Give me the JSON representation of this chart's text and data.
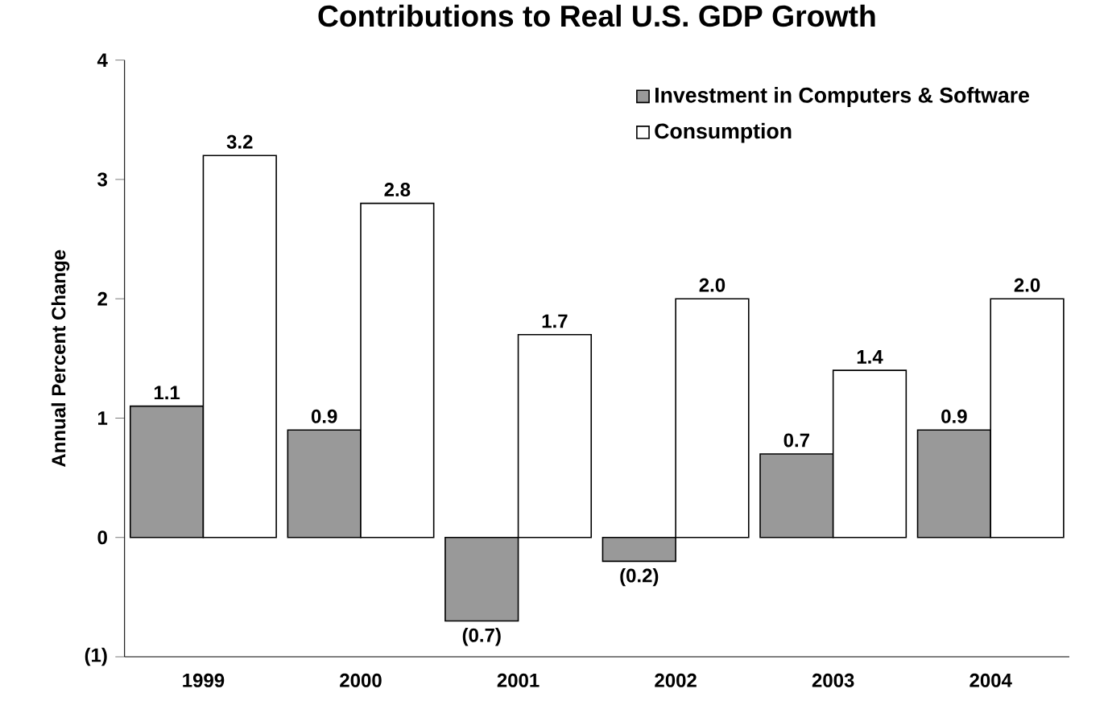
{
  "chart_data": {
    "type": "bar",
    "title": "Contributions to Real U.S. GDP Growth",
    "ylabel": "Annual Percent Change",
    "categories": [
      "1999",
      "2000",
      "2001",
      "2002",
      "2003",
      "2004"
    ],
    "series": [
      {
        "name": "Investment in Computers & Software",
        "color": "#999999",
        "values": [
          1.1,
          0.9,
          -0.7,
          -0.2,
          0.7,
          0.9
        ],
        "value_labels": [
          "1.1",
          "0.9",
          "(0.7)",
          "(0.2)",
          "0.7",
          "0.9"
        ]
      },
      {
        "name": "Consumption",
        "color": "#ffffff",
        "values": [
          3.2,
          2.8,
          1.7,
          2.0,
          1.4,
          2.0
        ],
        "value_labels": [
          "3.2",
          "2.8",
          "1.7",
          "2.0",
          "1.4",
          "2.0"
        ]
      }
    ],
    "ylim": [
      -1,
      4
    ],
    "yticks": [
      {
        "value": -1,
        "label": "(1)"
      },
      0,
      1,
      2,
      3,
      4
    ],
    "grid": false,
    "legend": "top right"
  }
}
